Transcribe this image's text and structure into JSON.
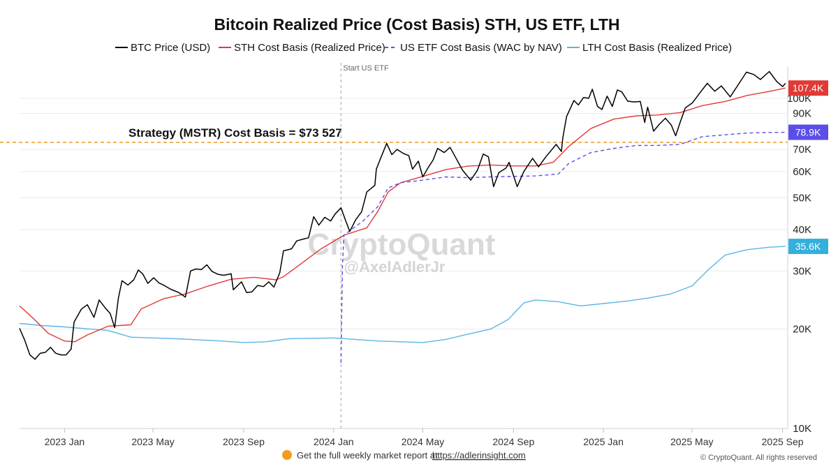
{
  "chart_data": {
    "type": "line",
    "title": "Bitcoin Realized Price (Cost Basis) STH, US ETF, LTH",
    "y_scale": "log",
    "ylim": [
      10000,
      125000
    ],
    "xlim": [
      "2022-11-01",
      "2025-09-08"
    ],
    "grid": "horizontal",
    "x_ticks": [
      {
        "date": "2023-01-01",
        "label": "2023 Jan"
      },
      {
        "date": "2023-05-01",
        "label": "2023 May"
      },
      {
        "date": "2023-09-01",
        "label": "2023 Sep"
      },
      {
        "date": "2024-01-01",
        "label": "2024 Jan"
      },
      {
        "date": "2024-05-01",
        "label": "2024 May"
      },
      {
        "date": "2024-09-01",
        "label": "2024 Sep"
      },
      {
        "date": "2025-01-01",
        "label": "2025 Jan"
      },
      {
        "date": "2025-05-01",
        "label": "2025 May"
      },
      {
        "date": "2025-09-01",
        "label": "2025 Sep"
      }
    ],
    "y_ticks": [
      {
        "value": 10000,
        "label": "10K"
      },
      {
        "value": 20000,
        "label": "20K"
      },
      {
        "value": 30000,
        "label": "30K"
      },
      {
        "value": 40000,
        "label": "40K"
      },
      {
        "value": 50000,
        "label": "50K"
      },
      {
        "value": 60000,
        "label": "60K"
      },
      {
        "value": 70000,
        "label": "70K"
      },
      {
        "value": 90000,
        "label": "90K"
      },
      {
        "value": 100000,
        "label": "100K"
      }
    ],
    "series": [
      {
        "name": "BTC Price (USD)",
        "color": "#000000",
        "style": "solid",
        "points": [
          [
            "2022-11-01",
            20100
          ],
          [
            "2022-11-08",
            18500
          ],
          [
            "2022-11-15",
            16700
          ],
          [
            "2022-11-22",
            16200
          ],
          [
            "2022-11-29",
            16900
          ],
          [
            "2022-12-06",
            17000
          ],
          [
            "2022-12-13",
            17600
          ],
          [
            "2022-12-20",
            16900
          ],
          [
            "2022-12-27",
            16700
          ],
          [
            "2023-01-03",
            16700
          ],
          [
            "2023-01-10",
            17400
          ],
          [
            "2023-01-14",
            21000
          ],
          [
            "2023-01-24",
            23000
          ],
          [
            "2023-02-01",
            23700
          ],
          [
            "2023-02-10",
            21700
          ],
          [
            "2023-02-17",
            24500
          ],
          [
            "2023-02-25",
            23200
          ],
          [
            "2023-03-04",
            22300
          ],
          [
            "2023-03-10",
            20200
          ],
          [
            "2023-03-15",
            24800
          ],
          [
            "2023-03-20",
            28000
          ],
          [
            "2023-03-28",
            27200
          ],
          [
            "2023-04-05",
            28200
          ],
          [
            "2023-04-11",
            30200
          ],
          [
            "2023-04-17",
            29400
          ],
          [
            "2023-04-24",
            27500
          ],
          [
            "2023-05-02",
            28600
          ],
          [
            "2023-05-09",
            27600
          ],
          [
            "2023-05-15",
            27200
          ],
          [
            "2023-05-25",
            26400
          ],
          [
            "2023-06-05",
            25800
          ],
          [
            "2023-06-14",
            25000
          ],
          [
            "2023-06-21",
            30000
          ],
          [
            "2023-06-28",
            30400
          ],
          [
            "2023-07-06",
            30300
          ],
          [
            "2023-07-13",
            31300
          ],
          [
            "2023-07-20",
            29900
          ],
          [
            "2023-07-28",
            29300
          ],
          [
            "2023-08-05",
            29100
          ],
          [
            "2023-08-15",
            29400
          ],
          [
            "2023-08-18",
            26300
          ],
          [
            "2023-08-29",
            27800
          ],
          [
            "2023-09-05",
            25800
          ],
          [
            "2023-09-12",
            25900
          ],
          [
            "2023-09-20",
            27100
          ],
          [
            "2023-09-28",
            26900
          ],
          [
            "2023-10-05",
            27800
          ],
          [
            "2023-10-12",
            26800
          ],
          [
            "2023-10-20",
            29600
          ],
          [
            "2023-10-25",
            34500
          ],
          [
            "2023-11-05",
            35000
          ],
          [
            "2023-11-12",
            37000
          ],
          [
            "2023-11-20",
            37400
          ],
          [
            "2023-11-28",
            37800
          ],
          [
            "2023-12-05",
            43800
          ],
          [
            "2023-12-12",
            41300
          ],
          [
            "2023-12-20",
            43600
          ],
          [
            "2023-12-28",
            42500
          ],
          [
            "2024-01-03",
            44600
          ],
          [
            "2024-01-11",
            46600
          ],
          [
            "2024-01-17",
            42800
          ],
          [
            "2024-01-23",
            39500
          ],
          [
            "2024-01-31",
            42900
          ],
          [
            "2024-02-08",
            45300
          ],
          [
            "2024-02-15",
            52000
          ],
          [
            "2024-02-26",
            54500
          ],
          [
            "2024-02-28",
            61000
          ],
          [
            "2024-03-05",
            66000
          ],
          [
            "2024-03-13",
            73000
          ],
          [
            "2024-03-20",
            67500
          ],
          [
            "2024-03-27",
            70000
          ],
          [
            "2024-04-05",
            68000
          ],
          [
            "2024-04-12",
            67000
          ],
          [
            "2024-04-17",
            61000
          ],
          [
            "2024-04-25",
            64500
          ],
          [
            "2024-05-01",
            57800
          ],
          [
            "2024-05-08",
            61500
          ],
          [
            "2024-05-15",
            65000
          ],
          [
            "2024-05-21",
            70500
          ],
          [
            "2024-05-30",
            68500
          ],
          [
            "2024-06-07",
            71000
          ],
          [
            "2024-06-14",
            66500
          ],
          [
            "2024-06-24",
            60500
          ],
          [
            "2024-07-05",
            56500
          ],
          [
            "2024-07-14",
            60500
          ],
          [
            "2024-07-22",
            67800
          ],
          [
            "2024-07-29",
            66500
          ],
          [
            "2024-08-05",
            54000
          ],
          [
            "2024-08-12",
            59500
          ],
          [
            "2024-08-22",
            61500
          ],
          [
            "2024-08-26",
            64000
          ],
          [
            "2024-09-06",
            54000
          ],
          [
            "2024-09-15",
            60000
          ],
          [
            "2024-09-27",
            65800
          ],
          [
            "2024-10-05",
            62000
          ],
          [
            "2024-10-15",
            66500
          ],
          [
            "2024-10-29",
            72500
          ],
          [
            "2024-11-05",
            69000
          ],
          [
            "2024-11-07",
            76000
          ],
          [
            "2024-11-12",
            88000
          ],
          [
            "2024-11-22",
            98500
          ],
          [
            "2024-11-28",
            95500
          ],
          [
            "2024-12-05",
            100500
          ],
          [
            "2024-12-12",
            100000
          ],
          [
            "2024-12-17",
            106500
          ],
          [
            "2024-12-24",
            94500
          ],
          [
            "2024-12-30",
            92500
          ],
          [
            "2025-01-06",
            101500
          ],
          [
            "2025-01-13",
            94500
          ],
          [
            "2025-01-20",
            106000
          ],
          [
            "2025-01-26",
            104500
          ],
          [
            "2025-02-03",
            98000
          ],
          [
            "2025-02-12",
            97500
          ],
          [
            "2025-02-20",
            97800
          ],
          [
            "2025-02-26",
            84500
          ],
          [
            "2025-03-02",
            94000
          ],
          [
            "2025-03-10",
            79500
          ],
          [
            "2025-03-18",
            83500
          ],
          [
            "2025-03-26",
            87000
          ],
          [
            "2025-04-03",
            83000
          ],
          [
            "2025-04-09",
            77000
          ],
          [
            "2025-04-15",
            84500
          ],
          [
            "2025-04-22",
            93500
          ],
          [
            "2025-05-02",
            97000
          ],
          [
            "2025-05-12",
            104000
          ],
          [
            "2025-05-22",
            111000
          ],
          [
            "2025-06-01",
            105000
          ],
          [
            "2025-06-10",
            109000
          ],
          [
            "2025-06-22",
            101000
          ],
          [
            "2025-06-30",
            107500
          ],
          [
            "2025-07-14",
            120000
          ],
          [
            "2025-07-24",
            118000
          ],
          [
            "2025-08-02",
            114000
          ],
          [
            "2025-08-14",
            120500
          ],
          [
            "2025-08-24",
            112500
          ],
          [
            "2025-09-01",
            108500
          ],
          [
            "2025-09-05",
            111000
          ]
        ]
      },
      {
        "name": "STH Cost Basis (Realized Price)",
        "color": "#e03a35",
        "style": "solid",
        "points": [
          [
            "2022-11-01",
            23500
          ],
          [
            "2022-11-20",
            21500
          ],
          [
            "2022-12-10",
            19400
          ],
          [
            "2023-01-01",
            18400
          ],
          [
            "2023-01-15",
            18300
          ],
          [
            "2023-02-01",
            19200
          ],
          [
            "2023-03-01",
            20400
          ],
          [
            "2023-04-01",
            20600
          ],
          [
            "2023-04-15",
            23000
          ],
          [
            "2023-05-15",
            24700
          ],
          [
            "2023-06-15",
            25600
          ],
          [
            "2023-07-15",
            27000
          ],
          [
            "2023-08-15",
            28300
          ],
          [
            "2023-09-15",
            28700
          ],
          [
            "2023-10-15",
            28200
          ],
          [
            "2023-10-25",
            28800
          ],
          [
            "2023-11-15",
            31200
          ],
          [
            "2023-12-15",
            35000
          ],
          [
            "2024-01-15",
            38500
          ],
          [
            "2024-02-15",
            40500
          ],
          [
            "2024-03-01",
            45500
          ],
          [
            "2024-03-15",
            52000
          ],
          [
            "2024-04-01",
            55500
          ],
          [
            "2024-05-01",
            58000
          ],
          [
            "2024-06-01",
            60800
          ],
          [
            "2024-07-01",
            62300
          ],
          [
            "2024-08-01",
            62800
          ],
          [
            "2024-09-01",
            62400
          ],
          [
            "2024-10-01",
            62400
          ],
          [
            "2024-10-25",
            64000
          ],
          [
            "2024-11-15",
            71500
          ],
          [
            "2024-12-15",
            81000
          ],
          [
            "2025-01-15",
            86500
          ],
          [
            "2025-02-15",
            88500
          ],
          [
            "2025-03-15",
            89000
          ],
          [
            "2025-04-15",
            90500
          ],
          [
            "2025-05-15",
            95000
          ],
          [
            "2025-06-15",
            97800
          ],
          [
            "2025-07-15",
            102000
          ],
          [
            "2025-08-15",
            105000
          ],
          [
            "2025-09-05",
            107400
          ]
        ]
      },
      {
        "name": "US ETF Cost Basis (WAC by NAV)",
        "color": "#5b4ee8",
        "style": "dashed",
        "points": [
          [
            "2024-01-11",
            15800
          ],
          [
            "2024-01-13",
            31000
          ],
          [
            "2024-01-15",
            38500
          ],
          [
            "2024-01-25",
            40000
          ],
          [
            "2024-02-10",
            42500
          ],
          [
            "2024-03-01",
            47000
          ],
          [
            "2024-03-15",
            53500
          ],
          [
            "2024-04-01",
            55500
          ],
          [
            "2024-05-01",
            56500
          ],
          [
            "2024-06-01",
            57800
          ],
          [
            "2024-07-01",
            57500
          ],
          [
            "2024-08-01",
            57800
          ],
          [
            "2024-09-01",
            58000
          ],
          [
            "2024-10-01",
            58200
          ],
          [
            "2024-11-01",
            59000
          ],
          [
            "2024-11-15",
            63500
          ],
          [
            "2024-12-15",
            68500
          ],
          [
            "2025-01-15",
            70500
          ],
          [
            "2025-02-15",
            72000
          ],
          [
            "2025-03-15",
            72000
          ],
          [
            "2025-04-15",
            72500
          ],
          [
            "2025-05-15",
            76500
          ],
          [
            "2025-06-15",
            77500
          ],
          [
            "2025-07-15",
            78500
          ],
          [
            "2025-08-15",
            78800
          ],
          [
            "2025-09-05",
            78900
          ]
        ]
      },
      {
        "name": "LTH Cost Basis (Realized Price)",
        "color": "#5bb5e3",
        "style": "solid",
        "points": [
          [
            "2022-11-01",
            20800
          ],
          [
            "2022-12-01",
            20500
          ],
          [
            "2023-01-01",
            20300
          ],
          [
            "2023-03-01",
            19800
          ],
          [
            "2023-04-01",
            18900
          ],
          [
            "2023-06-01",
            18700
          ],
          [
            "2023-08-01",
            18400
          ],
          [
            "2023-09-01",
            18200
          ],
          [
            "2023-10-01",
            18300
          ],
          [
            "2023-11-01",
            18700
          ],
          [
            "2024-01-01",
            18800
          ],
          [
            "2024-03-01",
            18400
          ],
          [
            "2024-05-01",
            18200
          ],
          [
            "2024-06-01",
            18600
          ],
          [
            "2024-07-01",
            19300
          ],
          [
            "2024-08-01",
            20000
          ],
          [
            "2024-08-25",
            21400
          ],
          [
            "2024-09-15",
            24000
          ],
          [
            "2024-10-01",
            24500
          ],
          [
            "2024-11-01",
            24200
          ],
          [
            "2024-12-01",
            23500
          ],
          [
            "2025-01-01",
            23900
          ],
          [
            "2025-02-01",
            24300
          ],
          [
            "2025-03-01",
            24800
          ],
          [
            "2025-04-01",
            25500
          ],
          [
            "2025-05-01",
            27000
          ],
          [
            "2025-05-25",
            30500
          ],
          [
            "2025-06-15",
            33500
          ],
          [
            "2025-07-15",
            34800
          ],
          [
            "2025-08-15",
            35400
          ],
          [
            "2025-09-05",
            35600
          ]
        ]
      }
    ],
    "hline": {
      "value": 73527,
      "label": "Strategy (MSTR) Cost Basis = $73 527",
      "color": "#f0a030"
    },
    "vline": {
      "date": "2024-01-11",
      "label": "Start US ETF",
      "color": "#b0b0b0"
    },
    "badges": [
      {
        "label": "107.4K",
        "value": 107400,
        "color": "#e03a35"
      },
      {
        "label": "78.9K",
        "value": 78900,
        "color": "#5b4ee8"
      },
      {
        "label": "35.6K",
        "value": 35600,
        "color": "#33b0dc"
      }
    ]
  },
  "legend": [
    {
      "name": "BTC Price (USD)",
      "color": "#000000",
      "style": "solid"
    },
    {
      "name": "STH Cost Basis (Realized Price)",
      "color": "#e03a35",
      "style": "solid"
    },
    {
      "name": "US ETF Cost Basis (WAC by NAV)",
      "color": "#5b4ee8",
      "style": "dashed"
    },
    {
      "name": "LTH Cost Basis (Realized Price)",
      "color": "#5bb5e3",
      "style": "solid"
    }
  ],
  "watermark": {
    "brand": "CryptoQuant",
    "handle": "@AxelAdlerJr"
  },
  "footer": {
    "text": "Get the full weekly market report at",
    "link": "https://adlerinsight.com",
    "copyright": "© CryptoQuant. All rights reserved"
  }
}
